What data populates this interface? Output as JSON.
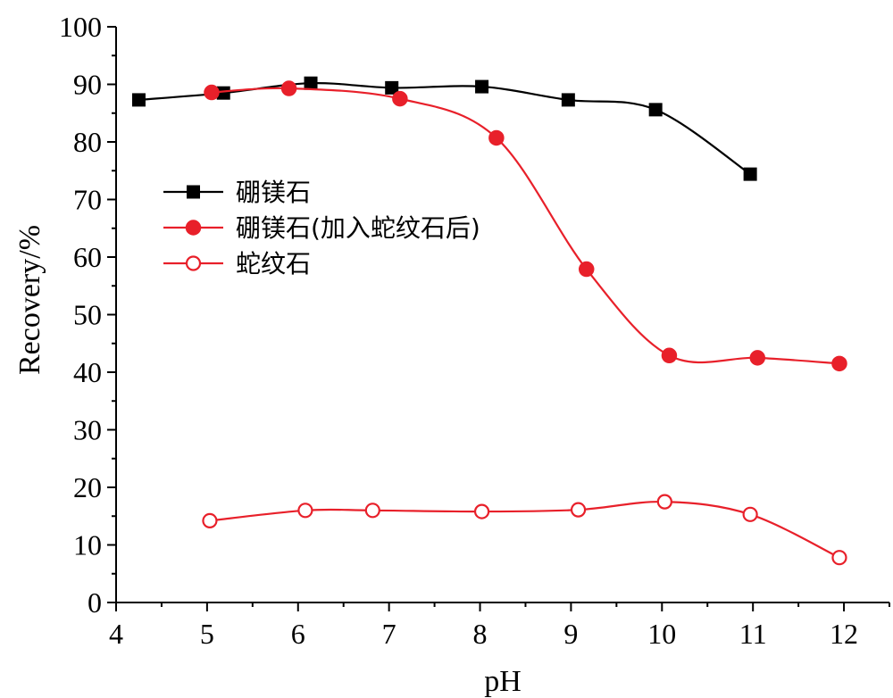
{
  "chart_data": {
    "type": "line",
    "title": "",
    "xlabel": "pH",
    "ylabel": "Recovery/%",
    "xlim": [
      4,
      12.5
    ],
    "ylim": [
      0,
      100
    ],
    "xticks": [
      4,
      5,
      6,
      7,
      8,
      9,
      10,
      11,
      12
    ],
    "yticks": [
      0,
      10,
      20,
      30,
      40,
      50,
      60,
      70,
      80,
      90,
      100
    ],
    "grid": false,
    "legend_position": "center-left",
    "series": [
      {
        "name": "硼镁石",
        "color": "#000000",
        "marker": "square-filled",
        "x": [
          4.25,
          5.18,
          6.14,
          7.03,
          8.02,
          8.97,
          9.93,
          10.97
        ],
        "y": [
          87.3,
          88.5,
          90.2,
          89.4,
          89.6,
          87.3,
          85.6,
          74.4
        ]
      },
      {
        "name": "硼镁石(加入蛇纹石后)",
        "color": "#e8202a",
        "marker": "circle-filled",
        "x": [
          5.05,
          5.9,
          7.12,
          8.18,
          9.17,
          10.08,
          11.05,
          11.95
        ],
        "y": [
          88.6,
          89.3,
          87.5,
          80.7,
          57.9,
          42.9,
          42.5,
          41.5
        ]
      },
      {
        "name": "蛇纹石",
        "color": "#e8202a",
        "marker": "circle-open",
        "x": [
          5.03,
          6.08,
          6.82,
          8.02,
          9.08,
          10.03,
          10.97,
          11.95
        ],
        "y": [
          14.2,
          16.0,
          16.0,
          15.8,
          16.1,
          17.5,
          15.3,
          7.8
        ]
      }
    ]
  }
}
